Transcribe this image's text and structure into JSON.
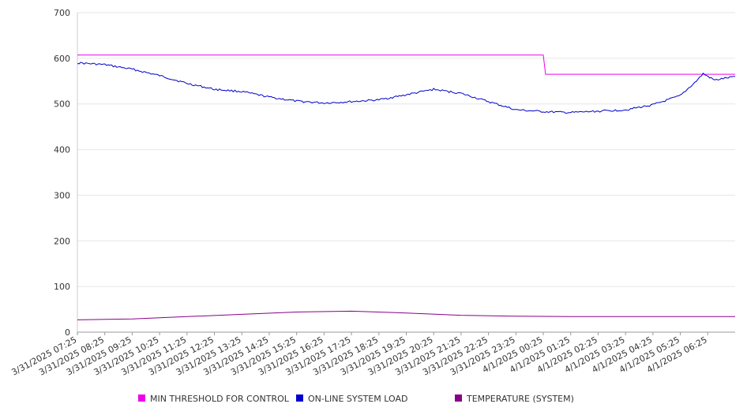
{
  "chart_data": {
    "type": "line",
    "title": "",
    "xlabel": "",
    "ylabel": "",
    "ylim": [
      0,
      700
    ],
    "yticks": [
      0,
      100,
      200,
      300,
      400,
      500,
      600,
      700
    ],
    "grid": true,
    "legend_position": "bottom",
    "x_tick_labels": [
      "3/31/2025 07:25",
      "3/31/2025 08:25",
      "3/31/2025 09:25",
      "3/31/2025 10:25",
      "3/31/2025 11:25",
      "3/31/2025 12:25",
      "3/31/2025 13:25",
      "3/31/2025 14:25",
      "3/31/2025 15:25",
      "3/31/2025 16:25",
      "3/31/2025 17:25",
      "3/31/2025 18:25",
      "3/31/2025 19:25",
      "3/31/2025 20:25",
      "3/31/2025 21:25",
      "3/31/2025 22:25",
      "3/31/2025 23:25",
      "4/1/2025 00:25",
      "4/1/2025 01:25",
      "4/1/2025 02:25",
      "4/1/2025 03:25",
      "4/1/2025 04:25",
      "4/1/2025 05:25",
      "4/1/2025 06:25"
    ],
    "x_range": [
      "3/31/2025 07:25",
      "4/1/2025 07:25"
    ],
    "series": [
      {
        "name": "MIN THRESHOLD FOR CONTROL",
        "color": "#ee00ee",
        "points": [
          [
            "3/31/2025 07:25",
            607
          ],
          [
            "4/1/2025 00:25",
            607
          ],
          [
            "4/1/2025 00:30",
            565
          ],
          [
            "4/1/2025 07:25",
            565
          ]
        ]
      },
      {
        "name": "ON-LINE SYSTEM LOAD",
        "color": "#0000cc",
        "points": [
          [
            "3/31/2025 07:25",
            590
          ],
          [
            "3/31/2025 08:25",
            586
          ],
          [
            "3/31/2025 09:25",
            576
          ],
          [
            "3/31/2025 10:25",
            562
          ],
          [
            "3/31/2025 11:25",
            545
          ],
          [
            "3/31/2025 12:25",
            532
          ],
          [
            "3/31/2025 13:25",
            527
          ],
          [
            "3/31/2025 14:25",
            515
          ],
          [
            "3/31/2025 15:25",
            506
          ],
          [
            "3/31/2025 16:25",
            502
          ],
          [
            "3/31/2025 17:25",
            505
          ],
          [
            "3/31/2025 18:25",
            509
          ],
          [
            "3/31/2025 19:25",
            520
          ],
          [
            "3/31/2025 20:25",
            532
          ],
          [
            "3/31/2025 21:25",
            523
          ],
          [
            "3/31/2025 22:25",
            505
          ],
          [
            "3/31/2025 23:25",
            487
          ],
          [
            "4/1/2025 00:25",
            483
          ],
          [
            "4/1/2025 01:25",
            481
          ],
          [
            "4/1/2025 02:25",
            484
          ],
          [
            "4/1/2025 03:25",
            487
          ],
          [
            "4/1/2025 04:25",
            498
          ],
          [
            "4/1/2025 05:25",
            518
          ],
          [
            "4/1/2025 06:00",
            550
          ],
          [
            "4/1/2025 06:15",
            566
          ],
          [
            "4/1/2025 06:40",
            552
          ],
          [
            "4/1/2025 07:25",
            560
          ]
        ]
      },
      {
        "name": "TEMPERATURE (SYSTEM)",
        "color": "#880088",
        "points": [
          [
            "3/31/2025 07:25",
            27
          ],
          [
            "3/31/2025 09:25",
            29
          ],
          [
            "3/31/2025 11:25",
            34
          ],
          [
            "3/31/2025 13:25",
            39
          ],
          [
            "3/31/2025 15:25",
            44
          ],
          [
            "3/31/2025 17:25",
            46
          ],
          [
            "3/31/2025 19:25",
            42
          ],
          [
            "3/31/2025 21:25",
            37
          ],
          [
            "3/31/2025 23:25",
            35
          ],
          [
            "4/1/2025 01:25",
            34
          ],
          [
            "4/1/2025 04:25",
            34
          ],
          [
            "4/1/2025 07:25",
            34
          ]
        ]
      }
    ]
  }
}
